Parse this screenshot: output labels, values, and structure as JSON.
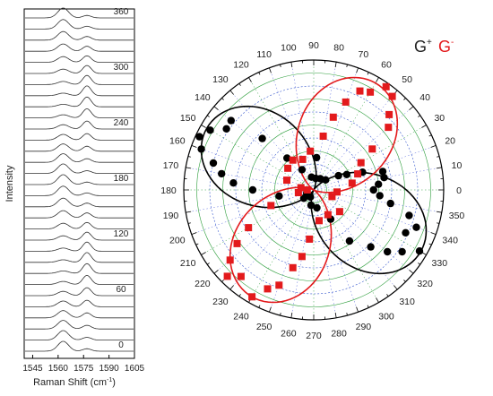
{
  "chart_data": [
    {
      "type": "line",
      "title": "",
      "xlabel": "Raman Shift (cm",
      "xlabel_sup": "-1",
      "xlabel_close": ")",
      "ylabel": "Intensity",
      "x_ticks": [
        "1545",
        "1560",
        "1575",
        "1590",
        "1605"
      ],
      "xlim": [
        1540,
        1605
      ],
      "angle_labels": [
        "0",
        "60",
        "120",
        "180",
        "240",
        "300",
        "360"
      ],
      "num_spectra": 31,
      "peaks": [
        {
          "name": "G-",
          "center": 1563,
          "width": 4.5,
          "sign": "cos"
        },
        {
          "name": "G+",
          "center": 1577,
          "width": 3.5,
          "sign": "sin"
        }
      ]
    },
    {
      "type": "scatter",
      "subtype": "polar",
      "title": "",
      "angular_ticks": [
        "0",
        "10",
        "20",
        "30",
        "40",
        "50",
        "60",
        "70",
        "80",
        "90",
        "100",
        "110",
        "120",
        "130",
        "140",
        "150",
        "160",
        "170",
        "180",
        "190",
        "200",
        "210",
        "220",
        "230",
        "240",
        "250",
        "260",
        "270",
        "280",
        "290",
        "300",
        "310",
        "320",
        "330",
        "340",
        "350"
      ],
      "legend": {
        "placement": "top-right",
        "entries": [
          {
            "label": "G",
            "sup": "+",
            "color": "#000000"
          },
          {
            "label": "G",
            "sup": "-",
            "color": "#e31a1c"
          }
        ]
      },
      "rlim": [
        0,
        1
      ],
      "series": [
        {
          "name": "G+",
          "color": "#000000",
          "marker": "circle",
          "fit_axes_deg": [
            150,
            330
          ],
          "points": [
            [
              0,
              0.46
            ],
            [
              5,
              0.5
            ],
            [
              10,
              0.55
            ],
            [
              15,
              0.55
            ],
            [
              20,
              0.4
            ],
            [
              25,
              0.28
            ],
            [
              30,
              0.22
            ],
            [
              40,
              0.12
            ],
            [
              60,
              0.1
            ],
            [
              80,
              0.09
            ],
            [
              100,
              0.1
            ],
            [
              120,
              0.18
            ],
            [
              130,
              0.32
            ],
            [
              135,
              0.56
            ],
            [
              140,
              0.83
            ],
            [
              145,
              0.82
            ],
            [
              150,
              0.92
            ],
            [
              155,
              0.97
            ],
            [
              160,
              0.92
            ],
            [
              165,
              0.8
            ],
            [
              170,
              0.72
            ],
            [
              175,
              0.62
            ],
            [
              180,
              0.47
            ],
            [
              190,
              0.27
            ],
            [
              205,
              0.06
            ],
            [
              220,
              0.1
            ],
            [
              245,
              0.06
            ],
            [
              260,
              0.12
            ],
            [
              280,
              0.14
            ],
            [
              300,
              0.26
            ],
            [
              305,
              0.48
            ],
            [
              315,
              0.62
            ],
            [
              320,
              0.74
            ],
            [
              325,
              0.83
            ],
            [
              330,
              0.94
            ],
            [
              335,
              0.78
            ],
            [
              340,
              0.84
            ],
            [
              345,
              0.76
            ],
            [
              350,
              0.6
            ],
            [
              355,
              0.51
            ],
            [
              85,
              0.25
            ]
          ]
        },
        {
          "name": "G-",
          "color": "#e31a1c",
          "marker": "square",
          "fit_axes_deg": [
            60,
            240
          ],
          "points": [
            [
              10,
              0.3
            ],
            [
              20,
              0.36
            ],
            [
              30,
              0.42
            ],
            [
              35,
              0.55
            ],
            [
              40,
              0.75
            ],
            [
              45,
              0.82
            ],
            [
              50,
              0.94
            ],
            [
              55,
              0.97
            ],
            [
              60,
              0.87
            ],
            [
              65,
              0.84
            ],
            [
              70,
              0.72
            ],
            [
              75,
              0.58
            ],
            [
              80,
              0.42
            ],
            [
              95,
              0.3
            ],
            [
              110,
              0.25
            ],
            [
              125,
              0.28
            ],
            [
              140,
              0.26
            ],
            [
              160,
              0.22
            ],
            [
              170,
              0.1
            ],
            [
              180,
              0.05
            ],
            [
              190,
              0.12
            ],
            [
              200,
              0.35
            ],
            [
              210,
              0.58
            ],
            [
              215,
              0.72
            ],
            [
              220,
              0.84
            ],
            [
              225,
              0.94
            ],
            [
              230,
              0.87
            ],
            [
              240,
              0.95
            ],
            [
              245,
              0.84
            ],
            [
              250,
              0.78
            ],
            [
              255,
              0.62
            ],
            [
              260,
              0.52
            ],
            [
              265,
              0.38
            ],
            [
              280,
              0.24
            ],
            [
              300,
              0.22
            ],
            [
              320,
              0.26
            ],
            [
              340,
              0.15
            ],
            [
              355,
              0.18
            ]
          ]
        }
      ]
    }
  ]
}
